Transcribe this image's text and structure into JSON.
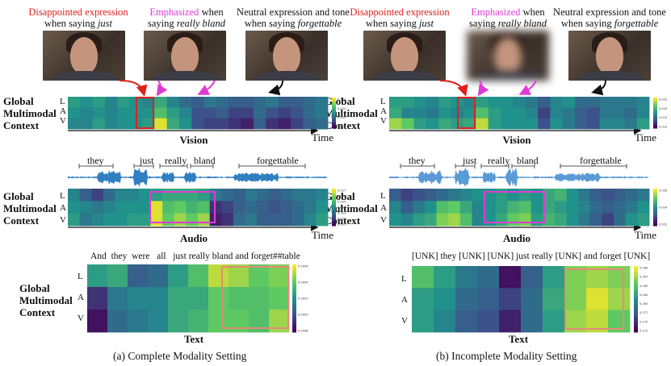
{
  "captions": {
    "left": [
      {
        "hl": "Disappointed expression",
        "hl_color": "red",
        "rest": "when saying ",
        "word": "just"
      },
      {
        "hl": "Emphasized",
        "hl_color": "mag",
        "rest": " when",
        "line2": "saying ",
        "word": "really bland"
      },
      {
        "hl": "",
        "hl_color": "none",
        "rest": "Neutral expression and tone",
        "line2": "when saying ",
        "word": "forgettable"
      }
    ],
    "right": [
      {
        "hl": "Disappointed expression",
        "hl_color": "red",
        "rest": "when saying ",
        "word": "just"
      },
      {
        "hl": "Emphasized",
        "hl_color": "mag",
        "rest": " when",
        "line2": "saying ",
        "word": "really bland"
      },
      {
        "hl": "",
        "hl_color": "none",
        "rest": "Neutral expression and tone",
        "line2": "when saying ",
        "word": "forgettable"
      }
    ]
  },
  "labels": {
    "ctx1": "Global",
    "ctx2": "Multimodal",
    "ctx3": "Context",
    "L": "L",
    "A": "A",
    "V": "V",
    "vision": "Vision",
    "audio": "Audio",
    "text": "Text",
    "time": "Time"
  },
  "audio_words": [
    "they",
    "just",
    "really",
    "bland",
    "forgettable"
  ],
  "text_tokens_left": [
    "And",
    "they",
    "were",
    "all",
    "just",
    "really",
    "bland",
    "and",
    "forget",
    "##table"
  ],
  "text_tokens_right": "[UNK] they [UNK] [UNK] just really [UNK] and forget [UNK]",
  "subcaptions": {
    "left": "(a) Complete Modality Setting",
    "right": "(b) Incomplete Modality Setting"
  },
  "colorbars": {
    "vision_left": [
      "0.024",
      "0.022",
      "0.020",
      "0.018"
    ],
    "vision_right": [
      "0.025",
      "0.020",
      "0.015",
      "0.010"
    ],
    "audio_left": [
      "0.027",
      "0.026",
      "0.025",
      "0.024",
      "0.023",
      "0.022",
      "0.021"
    ],
    "audio_right": [
      "0.026",
      "0.024",
      "0.022"
    ],
    "text_left": [
      "0.0056",
      "0.0054",
      "0.0052",
      "0.0050",
      "0.0048"
    ],
    "text_right": [
      "0.280",
      "0.267",
      "0.265",
      "0.260",
      "0.265",
      "0.277",
      "0.275",
      "0.272"
    ]
  },
  "heatmaps": {
    "vision_left": [
      [
        0.55,
        0.5,
        0.55,
        0.45,
        0.55,
        0.5,
        0.45,
        0.6,
        0.45,
        0.35,
        0.3,
        0.4,
        0.35,
        0.3,
        0.3,
        0.35,
        0.4,
        0.3,
        0.3,
        0.35,
        0.4
      ],
      [
        0.5,
        0.45,
        0.5,
        0.45,
        0.5,
        0.5,
        0.5,
        0.7,
        0.55,
        0.45,
        0.25,
        0.25,
        0.3,
        0.2,
        0.2,
        0.35,
        0.25,
        0.2,
        0.25,
        0.35,
        0.4
      ],
      [
        0.45,
        0.45,
        0.55,
        0.45,
        0.5,
        0.5,
        0.55,
        0.95,
        0.6,
        0.5,
        0.25,
        0.2,
        0.2,
        0.15,
        0.1,
        0.3,
        0.15,
        0.1,
        0.2,
        0.3,
        0.35
      ]
    ],
    "vision_right": [
      [
        0.55,
        0.55,
        0.5,
        0.45,
        0.55,
        0.5,
        0.45,
        0.55,
        0.5,
        0.5,
        0.45,
        0.4,
        0.3,
        0.45,
        0.5,
        0.35,
        0.35,
        0.4,
        0.4,
        0.4,
        0.45
      ],
      [
        0.6,
        0.45,
        0.45,
        0.4,
        0.5,
        0.45,
        0.5,
        0.7,
        0.55,
        0.5,
        0.5,
        0.45,
        0.2,
        0.45,
        0.4,
        0.3,
        0.25,
        0.4,
        0.4,
        0.35,
        0.45
      ],
      [
        0.85,
        0.75,
        0.55,
        0.5,
        0.6,
        0.55,
        0.6,
        0.9,
        0.55,
        0.5,
        0.5,
        0.5,
        0.25,
        0.5,
        0.4,
        0.3,
        0.25,
        0.45,
        0.45,
        0.4,
        0.55
      ]
    ],
    "audio_left": [
      [
        0.45,
        0.3,
        0.2,
        0.35,
        0.45,
        0.45,
        0.5,
        0.55,
        0.6,
        0.6,
        0.6,
        0.55,
        0.4,
        0.35,
        0.3,
        0.4,
        0.35,
        0.3,
        0.35,
        0.4,
        0.4,
        0.45
      ],
      [
        0.5,
        0.45,
        0.4,
        0.45,
        0.5,
        0.5,
        0.5,
        0.95,
        0.7,
        0.75,
        0.65,
        0.7,
        0.15,
        0.2,
        0.3,
        0.35,
        0.3,
        0.25,
        0.3,
        0.35,
        0.4,
        0.5
      ],
      [
        0.55,
        0.4,
        0.45,
        0.5,
        0.5,
        0.55,
        0.55,
        0.95,
        0.75,
        0.85,
        0.75,
        0.85,
        0.1,
        0.15,
        0.35,
        0.4,
        0.3,
        0.3,
        0.3,
        0.35,
        0.45,
        0.55
      ]
    ],
    "audio_right": [
      [
        0.3,
        0.2,
        0.25,
        0.3,
        0.35,
        0.4,
        0.45,
        0.5,
        0.5,
        0.55,
        0.5,
        0.55,
        0.5,
        0.6,
        0.65,
        0.5,
        0.4,
        0.3,
        0.25,
        0.3,
        0.35,
        0.4
      ],
      [
        0.45,
        0.3,
        0.4,
        0.5,
        0.7,
        0.75,
        0.6,
        0.45,
        0.5,
        0.55,
        0.65,
        0.7,
        0.5,
        0.6,
        0.55,
        0.5,
        0.45,
        0.35,
        0.3,
        0.35,
        0.4,
        0.5
      ],
      [
        0.5,
        0.45,
        0.55,
        0.6,
        0.8,
        0.85,
        0.7,
        0.45,
        0.5,
        0.6,
        0.75,
        0.8,
        0.55,
        0.65,
        0.6,
        0.5,
        0.4,
        0.3,
        0.2,
        0.35,
        0.5,
        0.55
      ]
    ],
    "text_left": [
      [
        0.55,
        0.6,
        0.3,
        0.35,
        0.55,
        0.7,
        0.9,
        0.85,
        0.75,
        0.8
      ],
      [
        0.15,
        0.4,
        0.45,
        0.45,
        0.6,
        0.6,
        0.75,
        0.7,
        0.7,
        0.75
      ],
      [
        0.05,
        0.35,
        0.4,
        0.45,
        0.6,
        0.65,
        0.75,
        0.75,
        0.7,
        0.85
      ]
    ],
    "text_right": [
      [
        0.7,
        0.55,
        0.4,
        0.35,
        0.05,
        0.3,
        0.55,
        0.8,
        0.85,
        0.8
      ],
      [
        0.55,
        0.5,
        0.35,
        0.3,
        0.2,
        0.35,
        0.6,
        0.8,
        0.95,
        0.85
      ],
      [
        0.55,
        0.45,
        0.3,
        0.25,
        0.1,
        0.35,
        0.55,
        0.85,
        0.9,
        0.75
      ]
    ]
  }
}
